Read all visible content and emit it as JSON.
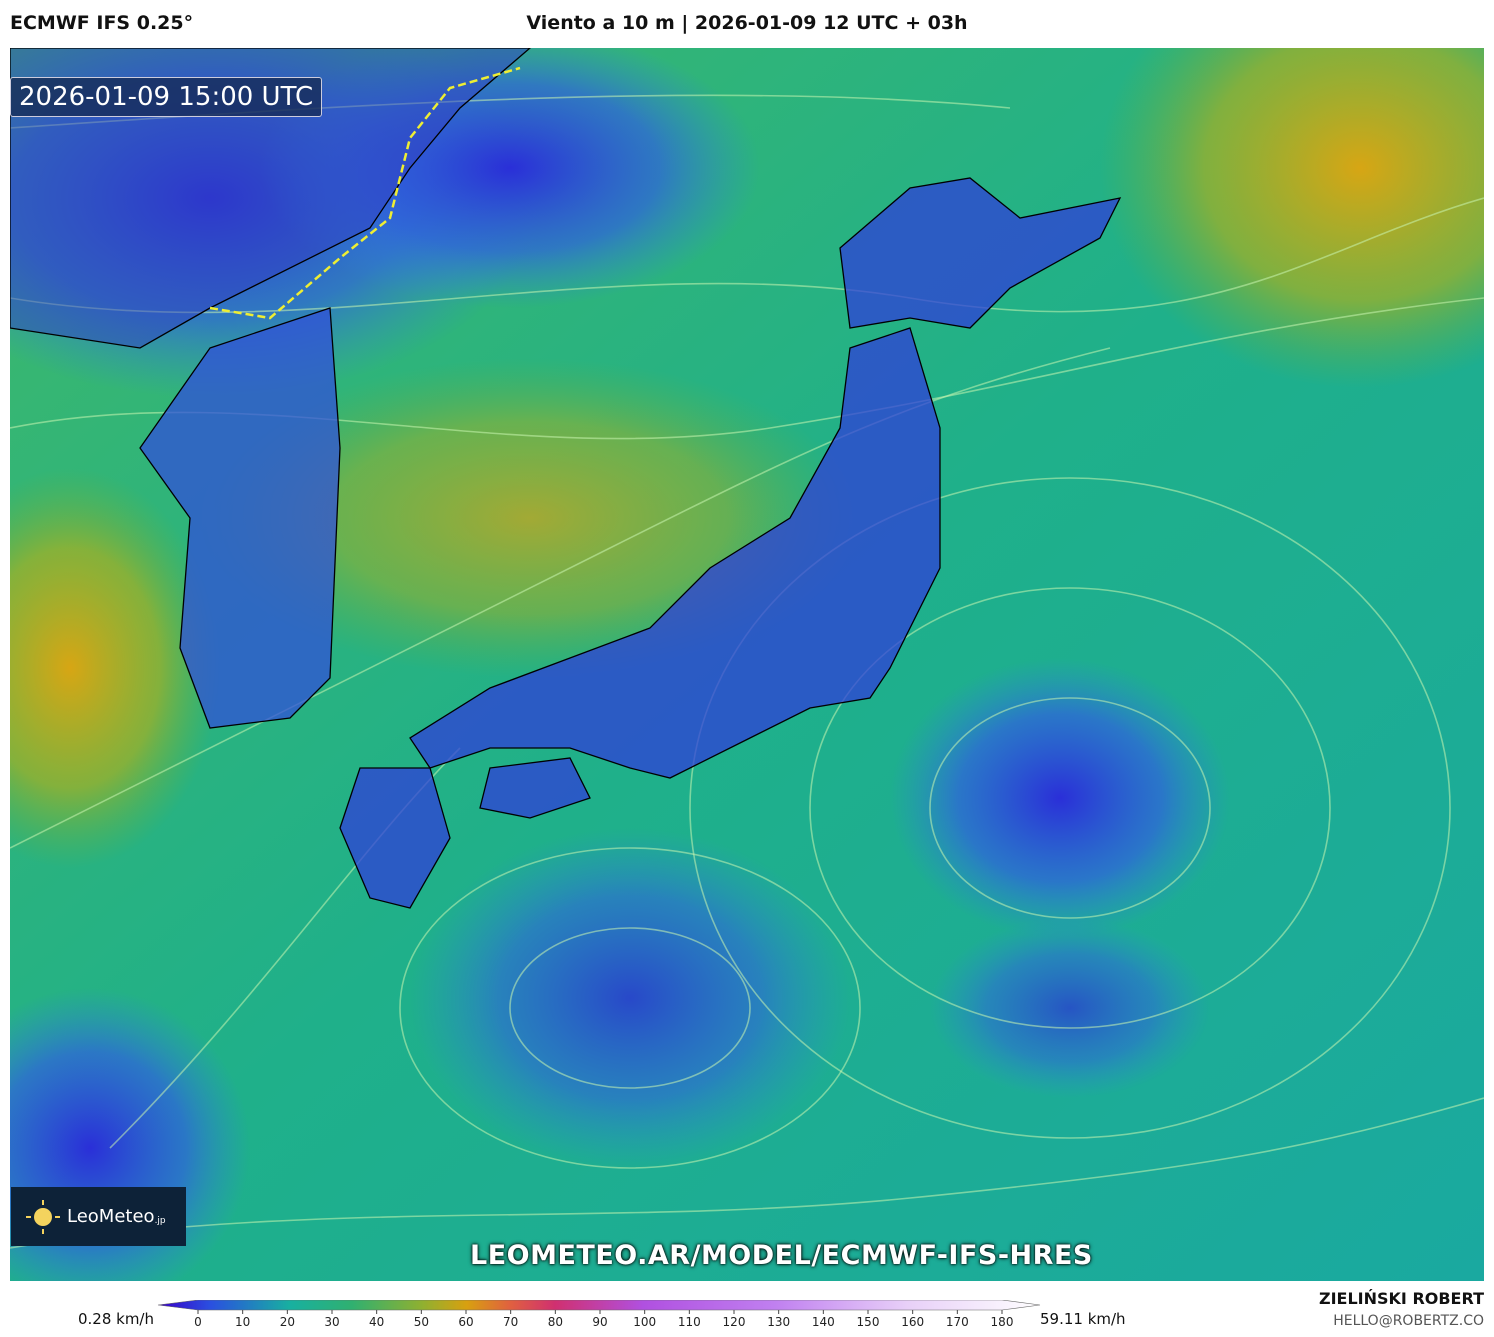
{
  "header": {
    "model": "ECMWF IFS 0.25°",
    "title": "Viento a 10 m | 2026-01-09 12 UTC + 03h"
  },
  "map": {
    "timestamp": "2026-01-09 15:00 UTC",
    "logo": "LeoMeteo",
    "logo_suffix": ".jp",
    "url": "LEOMETEO.AR/MODEL/ECMWF-IFS-HRES"
  },
  "colorbar": {
    "min_label": "0.28 km/h",
    "max_label": "59.11 km/h",
    "ticks": [
      0,
      10,
      20,
      30,
      40,
      50,
      60,
      70,
      80,
      90,
      100,
      110,
      120,
      130,
      140,
      150,
      160,
      170,
      180
    ]
  },
  "credit": {
    "name": "ZIELIŃSKI ROBERT",
    "email": "HELLO@ROBERTZ.CO"
  }
}
